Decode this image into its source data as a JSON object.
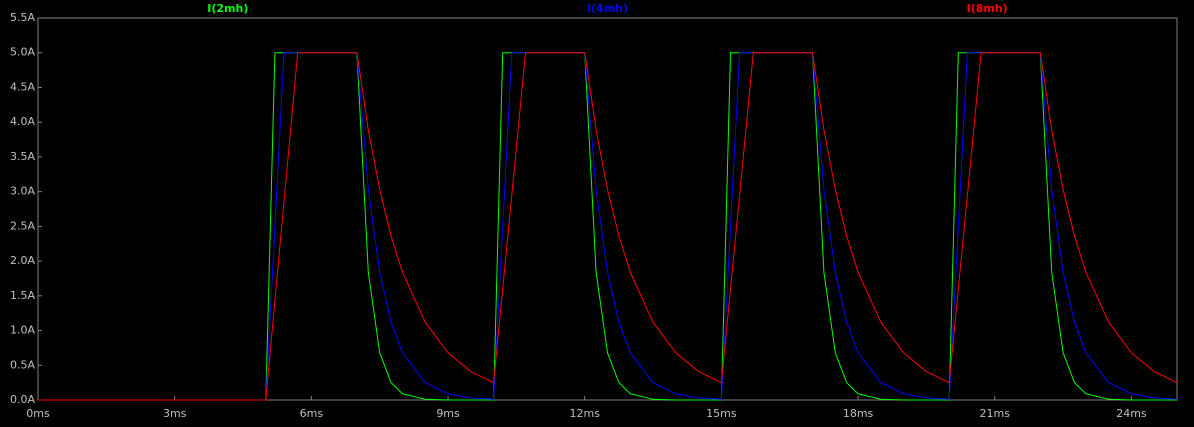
{
  "chart_data": {
    "type": "line",
    "x": [
      0,
      5,
      5.2,
      5.4,
      5.7,
      7,
      7.25,
      7.5,
      7.75,
      8,
      8.5,
      9,
      9.5,
      10,
      10.2,
      10.4,
      10.7,
      12,
      12.25,
      12.5,
      12.75,
      13,
      13.5,
      14,
      14.5,
      15,
      15.2,
      15.4,
      15.7,
      17,
      17.25,
      17.5,
      17.75,
      18,
      18.5,
      19,
      19.5,
      20,
      20.2,
      20.4,
      20.7,
      22,
      22.25,
      22.5,
      22.75,
      23,
      23.5,
      24,
      24.5,
      25
    ],
    "series": [
      {
        "name": "I(2mh)",
        "color": "#00ff00",
        "values": [
          0,
          0,
          5,
          5,
          5,
          5,
          1.84,
          0.68,
          0.25,
          0.09,
          0.01,
          0,
          0,
          0,
          5,
          5,
          5,
          5,
          1.84,
          0.68,
          0.25,
          0.09,
          0.01,
          0,
          0,
          0,
          5,
          5,
          5,
          5,
          1.84,
          0.68,
          0.25,
          0.09,
          0.01,
          0,
          0,
          0,
          5,
          5,
          5,
          5,
          1.84,
          0.68,
          0.25,
          0.09,
          0.01,
          0,
          0,
          0
        ]
      },
      {
        "name": "I(4mh)",
        "color": "#0000ff",
        "values": [
          0,
          0,
          2.5,
          5,
          5,
          5,
          3.03,
          1.84,
          1.12,
          0.68,
          0.25,
          0.09,
          0.03,
          0.01,
          2.5,
          5,
          5,
          5,
          3.03,
          1.84,
          1.12,
          0.68,
          0.25,
          0.09,
          0.03,
          0.01,
          2.5,
          5,
          5,
          5,
          3.03,
          1.84,
          1.12,
          0.68,
          0.25,
          0.09,
          0.03,
          0.01,
          2.5,
          5,
          5,
          5,
          3.03,
          1.84,
          1.12,
          0.68,
          0.25,
          0.09,
          0.03,
          0.01
        ]
      },
      {
        "name": "I(8mh)",
        "color": "#ff0000",
        "values": [
          0,
          0,
          1.43,
          2.86,
          5,
          5,
          3.89,
          3.03,
          2.36,
          1.84,
          1.12,
          0.68,
          0.41,
          0.25,
          1.6,
          2.95,
          5,
          5,
          3.89,
          3.03,
          2.36,
          1.84,
          1.12,
          0.68,
          0.41,
          0.25,
          1.6,
          2.95,
          5,
          5,
          3.89,
          3.03,
          2.36,
          1.84,
          1.12,
          0.68,
          0.41,
          0.25,
          1.6,
          2.95,
          5,
          5,
          3.89,
          3.03,
          2.36,
          1.84,
          1.12,
          0.68,
          0.41,
          0.25
        ]
      }
    ],
    "xlim": [
      0,
      25
    ],
    "xticks": [
      {
        "value": 0,
        "label": "0ms"
      },
      {
        "value": 3,
        "label": "3ms"
      },
      {
        "value": 6,
        "label": "6ms"
      },
      {
        "value": 9,
        "label": "9ms"
      },
      {
        "value": 12,
        "label": "12ms"
      },
      {
        "value": 15,
        "label": "15ms"
      },
      {
        "value": 18,
        "label": "18ms"
      },
      {
        "value": 21,
        "label": "21ms"
      },
      {
        "value": 24,
        "label": "24ms"
      }
    ],
    "ylim": [
      0,
      5.5
    ],
    "yticks": [
      {
        "value": 0,
        "label": "0.0A"
      },
      {
        "value": 0.5,
        "label": "0.5A"
      },
      {
        "value": 1,
        "label": "1.0A"
      },
      {
        "value": 1.5,
        "label": "1.5A"
      },
      {
        "value": 2,
        "label": "2.0A"
      },
      {
        "value": 2.5,
        "label": "2.5A"
      },
      {
        "value": 3,
        "label": "3.0A"
      },
      {
        "value": 3.5,
        "label": "3.5A"
      },
      {
        "value": 4,
        "label": "4.0A"
      },
      {
        "value": 4.5,
        "label": "4.5A"
      },
      {
        "value": 5,
        "label": "5.0A"
      },
      {
        "value": 5.5,
        "label": "5.5A"
      }
    ],
    "grid": false
  }
}
